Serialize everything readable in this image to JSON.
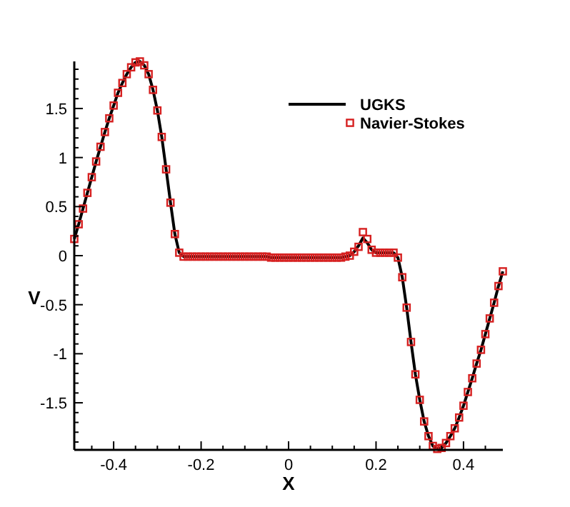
{
  "chart_data": {
    "type": "line",
    "xlabel": "X",
    "ylabel": "V",
    "xlim": [
      -0.49,
      0.49
    ],
    "ylim": [
      -1.98,
      1.98
    ],
    "xticks": [
      {
        "value": -0.45,
        "label": null
      },
      -0.4,
      {
        "value": -0.35,
        "label": null
      },
      {
        "value": -0.3,
        "label": null
      },
      {
        "value": -0.25,
        "label": null
      },
      -0.2,
      {
        "value": -0.15,
        "label": null
      },
      {
        "value": -0.1,
        "label": null
      },
      {
        "value": -0.05,
        "label": null
      },
      0,
      {
        "value": 0.05,
        "label": null
      },
      {
        "value": 0.1,
        "label": null
      },
      {
        "value": 0.15,
        "label": null
      },
      0.2,
      {
        "value": 0.25,
        "label": null
      },
      {
        "value": 0.3,
        "label": null
      },
      {
        "value": 0.35,
        "label": null
      },
      0.4,
      {
        "value": 0.45,
        "label": null
      }
    ],
    "yticks": [
      {
        "value": -1.9,
        "label": null
      },
      {
        "value": -1.8,
        "label": null
      },
      {
        "value": -1.7,
        "label": null
      },
      {
        "value": -1.6,
        "label": null
      },
      -1.5,
      {
        "value": -1.4,
        "label": null
      },
      {
        "value": -1.3,
        "label": null
      },
      {
        "value": -1.2,
        "label": null
      },
      {
        "value": -1.1,
        "label": null
      },
      -1,
      {
        "value": -0.9,
        "label": null
      },
      {
        "value": -0.8,
        "label": null
      },
      {
        "value": -0.7,
        "label": null
      },
      {
        "value": -0.6,
        "label": null
      },
      -0.5,
      {
        "value": -0.4,
        "label": null
      },
      {
        "value": -0.3,
        "label": null
      },
      {
        "value": -0.2,
        "label": null
      },
      {
        "value": -0.1,
        "label": null
      },
      0,
      {
        "value": 0.1,
        "label": null
      },
      {
        "value": 0.2,
        "label": null
      },
      {
        "value": 0.3,
        "label": null
      },
      {
        "value": 0.4,
        "label": null
      },
      0.5,
      {
        "value": 0.6,
        "label": null
      },
      {
        "value": 0.7,
        "label": null
      },
      {
        "value": 0.8,
        "label": null
      },
      {
        "value": 0.9,
        "label": null
      },
      1,
      {
        "value": 1.1,
        "label": null
      },
      {
        "value": 1.2,
        "label": null
      },
      {
        "value": 1.3,
        "label": null
      },
      {
        "value": 1.4,
        "label": null
      },
      1.5,
      {
        "value": 1.6,
        "label": null
      },
      {
        "value": 1.7,
        "label": null
      },
      {
        "value": 1.8,
        "label": null
      },
      {
        "value": 1.9,
        "label": null
      }
    ],
    "grid": false,
    "legend": "top right",
    "x": [
      -0.49,
      -0.48,
      -0.47,
      -0.46,
      -0.45,
      -0.44,
      -0.43,
      -0.42,
      -0.41,
      -0.4,
      -0.39,
      -0.38,
      -0.37,
      -0.36,
      -0.35,
      -0.34,
      -0.33,
      -0.32,
      -0.31,
      -0.3,
      -0.29,
      -0.28,
      -0.27,
      -0.26,
      -0.25,
      -0.24,
      -0.23,
      -0.22,
      -0.21,
      -0.2,
      -0.19,
      -0.18,
      -0.17,
      -0.16,
      -0.15,
      -0.14,
      -0.13,
      -0.12,
      -0.11,
      -0.1,
      -0.09,
      -0.08,
      -0.07,
      -0.06,
      -0.05,
      -0.04,
      -0.03,
      -0.02,
      -0.01,
      0,
      0.01,
      0.02,
      0.03,
      0.04,
      0.05,
      0.06,
      0.07,
      0.08,
      0.09,
      0.1,
      0.11,
      0.12,
      0.13,
      0.14,
      0.15,
      0.16,
      0.17,
      0.18,
      0.19,
      0.2,
      0.21,
      0.22,
      0.23,
      0.24,
      0.25,
      0.26,
      0.27,
      0.28,
      0.29,
      0.3,
      0.31,
      0.32,
      0.33,
      0.34,
      0.35,
      0.36,
      0.37,
      0.38,
      0.39,
      0.4,
      0.41,
      0.42,
      0.43,
      0.44,
      0.45,
      0.46,
      0.47,
      0.48,
      0.49
    ],
    "series": [
      {
        "name": "UGKS",
        "color": "#000000",
        "marker": "none",
        "line_style": "solid",
        "values": [
          0.17,
          0.32,
          0.48,
          0.64,
          0.8,
          0.96,
          1.11,
          1.26,
          1.4,
          1.53,
          1.66,
          1.76,
          1.85,
          1.92,
          1.97,
          1.98,
          1.94,
          1.85,
          1.69,
          1.48,
          1.21,
          0.88,
          0.54,
          0.22,
          0.03,
          -0.01,
          -0.01,
          -0.01,
          -0.01,
          -0.01,
          -0.01,
          -0.01,
          -0.01,
          -0.01,
          -0.01,
          -0.01,
          -0.01,
          -0.01,
          -0.01,
          -0.01,
          -0.01,
          -0.01,
          -0.01,
          -0.01,
          -0.01,
          -0.02,
          -0.02,
          -0.02,
          -0.02,
          -0.02,
          -0.02,
          -0.02,
          -0.02,
          -0.02,
          -0.02,
          -0.02,
          -0.02,
          -0.02,
          -0.02,
          -0.02,
          -0.02,
          -0.02,
          -0.01,
          0.0,
          0.04,
          0.1,
          0.18,
          0.13,
          0.06,
          0.03,
          0.03,
          0.03,
          0.03,
          0.03,
          -0.02,
          -0.22,
          -0.53,
          -0.88,
          -1.21,
          -1.47,
          -1.69,
          -1.84,
          -1.94,
          -1.97,
          -1.96,
          -1.91,
          -1.84,
          -1.76,
          -1.65,
          -1.53,
          -1.39,
          -1.25,
          -1.1,
          -0.96,
          -0.8,
          -0.64,
          -0.48,
          -0.31,
          -0.16
        ]
      },
      {
        "name": "Navier-Stokes",
        "type": "scatter",
        "color": "#d62020",
        "marker": "square",
        "values": [
          0.17,
          0.32,
          0.48,
          0.64,
          0.8,
          0.96,
          1.11,
          1.26,
          1.4,
          1.53,
          1.66,
          1.76,
          1.85,
          1.92,
          1.97,
          1.98,
          1.94,
          1.85,
          1.69,
          1.48,
          1.21,
          0.88,
          0.54,
          0.22,
          0.03,
          -0.01,
          -0.01,
          -0.01,
          -0.01,
          -0.01,
          -0.01,
          -0.01,
          -0.01,
          -0.01,
          -0.01,
          -0.01,
          -0.01,
          -0.01,
          -0.01,
          -0.01,
          -0.01,
          -0.01,
          -0.01,
          -0.01,
          -0.01,
          -0.02,
          -0.02,
          -0.02,
          -0.02,
          -0.02,
          -0.02,
          -0.02,
          -0.02,
          -0.02,
          -0.02,
          -0.02,
          -0.02,
          -0.02,
          -0.02,
          -0.02,
          -0.02,
          -0.02,
          -0.01,
          0.0,
          0.04,
          0.09,
          0.24,
          0.17,
          0.06,
          0.03,
          0.03,
          0.03,
          0.03,
          0.03,
          -0.02,
          -0.22,
          -0.53,
          -0.88,
          -1.21,
          -1.47,
          -1.69,
          -1.84,
          -1.94,
          -1.97,
          -1.96,
          -1.91,
          -1.84,
          -1.76,
          -1.65,
          -1.53,
          -1.39,
          -1.25,
          -1.1,
          -0.96,
          -0.8,
          -0.64,
          -0.48,
          -0.31,
          -0.16
        ]
      }
    ]
  }
}
